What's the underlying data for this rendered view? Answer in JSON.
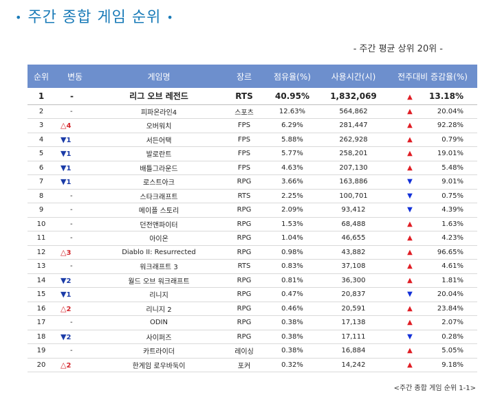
{
  "header": {
    "title": "주간 종합 게임 순위",
    "dot_left": "•",
    "dot_right": "•",
    "subtitle": "- 주간 평균 상위 20위 -"
  },
  "table": {
    "columns": [
      "순위",
      "변동",
      "게임명",
      "장르",
      "점유율(%)",
      "사용시간(시)",
      "전주대비 증감율(%)"
    ],
    "rows": [
      {
        "rank": "1",
        "change": "-",
        "change_dir": "flat",
        "name": "리그 오브 레전드",
        "genre": "RTS",
        "share": "40.95%",
        "hours": "1,832,069",
        "trend": "up",
        "rate": "13.18%"
      },
      {
        "rank": "2",
        "change": "-",
        "change_dir": "flat",
        "name": "피파온라인4",
        "genre": "스포츠",
        "share": "12.63%",
        "hours": "564,862",
        "trend": "up",
        "rate": "20.04%"
      },
      {
        "rank": "3",
        "change": "4",
        "change_dir": "up",
        "name": "오버워치",
        "genre": "FPS",
        "share": "6.29%",
        "hours": "281,447",
        "trend": "up",
        "rate": "92.28%"
      },
      {
        "rank": "4",
        "change": "1",
        "change_dir": "down",
        "name": "서든어택",
        "genre": "FPS",
        "share": "5.88%",
        "hours": "262,928",
        "trend": "up",
        "rate": "0.79%"
      },
      {
        "rank": "5",
        "change": "1",
        "change_dir": "down",
        "name": "발로란트",
        "genre": "FPS",
        "share": "5.77%",
        "hours": "258,201",
        "trend": "up",
        "rate": "19.01%"
      },
      {
        "rank": "6",
        "change": "1",
        "change_dir": "down",
        "name": "배틀그라운드",
        "genre": "FPS",
        "share": "4.63%",
        "hours": "207,130",
        "trend": "up",
        "rate": "5.48%"
      },
      {
        "rank": "7",
        "change": "1",
        "change_dir": "down",
        "name": "로스트아크",
        "genre": "RPG",
        "share": "3.66%",
        "hours": "163,886",
        "trend": "down",
        "rate": "9.01%"
      },
      {
        "rank": "8",
        "change": "-",
        "change_dir": "flat",
        "name": "스타크래프트",
        "genre": "RTS",
        "share": "2.25%",
        "hours": "100,701",
        "trend": "down",
        "rate": "0.75%"
      },
      {
        "rank": "9",
        "change": "-",
        "change_dir": "flat",
        "name": "메이플 스토리",
        "genre": "RPG",
        "share": "2.09%",
        "hours": "93,412",
        "trend": "down",
        "rate": "4.39%"
      },
      {
        "rank": "10",
        "change": "-",
        "change_dir": "flat",
        "name": "던전앤파이터",
        "genre": "RPG",
        "share": "1.53%",
        "hours": "68,488",
        "trend": "up",
        "rate": "1.63%"
      },
      {
        "rank": "11",
        "change": "-",
        "change_dir": "flat",
        "name": "아이온",
        "genre": "RPG",
        "share": "1.04%",
        "hours": "46,655",
        "trend": "up",
        "rate": "4.23%"
      },
      {
        "rank": "12",
        "change": "3",
        "change_dir": "up",
        "name": "Diablo II: Resurrected",
        "genre": "RPG",
        "share": "0.98%",
        "hours": "43,882",
        "trend": "up",
        "rate": "96.65%"
      },
      {
        "rank": "13",
        "change": "-",
        "change_dir": "flat",
        "name": "워크래프트 3",
        "genre": "RTS",
        "share": "0.83%",
        "hours": "37,108",
        "trend": "up",
        "rate": "4.61%"
      },
      {
        "rank": "14",
        "change": "2",
        "change_dir": "down",
        "name": "월드 오브 워크래프트",
        "genre": "RPG",
        "share": "0.81%",
        "hours": "36,300",
        "trend": "up",
        "rate": "1.81%"
      },
      {
        "rank": "15",
        "change": "1",
        "change_dir": "down",
        "name": "리니지",
        "genre": "RPG",
        "share": "0.47%",
        "hours": "20,837",
        "trend": "down",
        "rate": "20.04%"
      },
      {
        "rank": "16",
        "change": "2",
        "change_dir": "up",
        "name": "리니지 2",
        "genre": "RPG",
        "share": "0.46%",
        "hours": "20,591",
        "trend": "up",
        "rate": "23.84%"
      },
      {
        "rank": "17",
        "change": "-",
        "change_dir": "flat",
        "name": "ODIN",
        "genre": "RPG",
        "share": "0.38%",
        "hours": "17,138",
        "trend": "up",
        "rate": "2.07%"
      },
      {
        "rank": "18",
        "change": "2",
        "change_dir": "down",
        "name": "사이퍼즈",
        "genre": "RPG",
        "share": "0.38%",
        "hours": "17,111",
        "trend": "down",
        "rate": "0.28%"
      },
      {
        "rank": "19",
        "change": "-",
        "change_dir": "flat",
        "name": "카트라이더",
        "genre": "레이싱",
        "share": "0.38%",
        "hours": "16,884",
        "trend": "up",
        "rate": "5.05%"
      },
      {
        "rank": "20",
        "change": "2",
        "change_dir": "up",
        "name": "한게임 로우바둑이",
        "genre": "포커",
        "share": "0.32%",
        "hours": "14,242",
        "trend": "up",
        "rate": "9.18%"
      }
    ]
  },
  "caption": "<주간 종합 게임 순위 1-1>",
  "colors": {
    "title": "#1a7bb8",
    "header_bg": "#6d8fcd",
    "up": "#e01e25",
    "down": "#1230d8",
    "change_up": "#d4262c",
    "change_down": "#1b3ca8"
  },
  "icons": {
    "change_up": "outlined-up-triangle-icon",
    "change_down": "filled-down-triangle-icon",
    "trend_up": "red-up-triangle-icon",
    "trend_down": "blue-down-triangle-icon"
  }
}
